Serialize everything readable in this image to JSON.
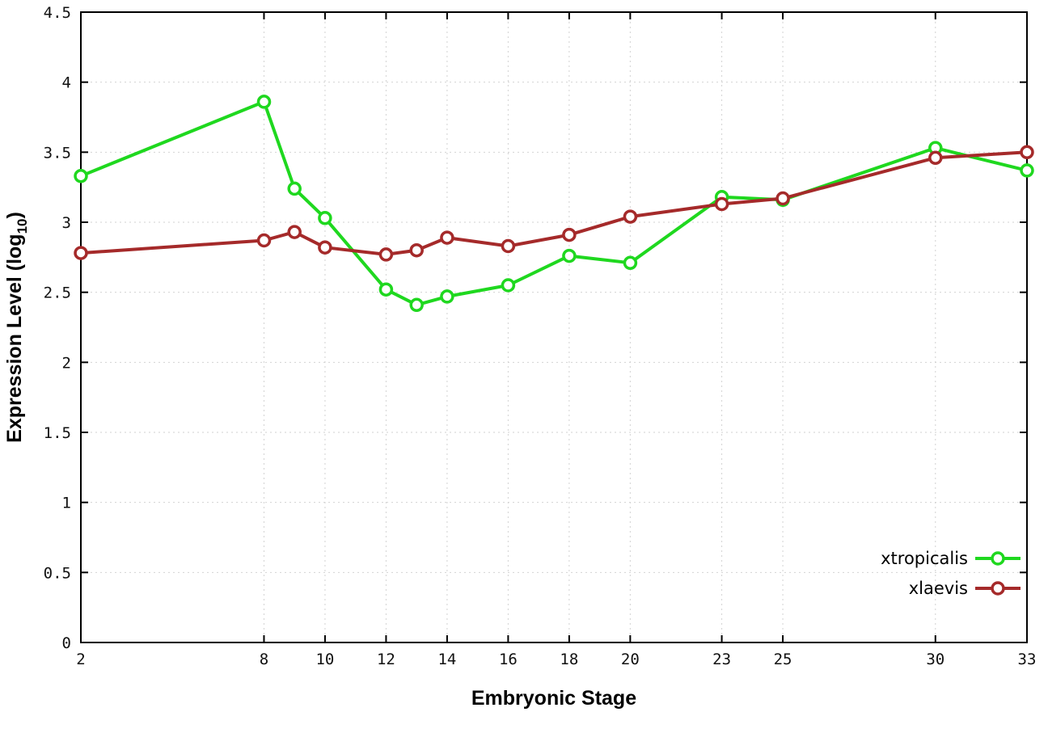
{
  "chart_data": {
    "type": "line",
    "title": "",
    "xlabel": "Embryonic Stage",
    "ylabel": "Expression Level (log10)",
    "ylabel_parts": {
      "pre": "Expression Level (log",
      "sub": "10",
      "post": ")"
    },
    "xlim": [
      2,
      33
    ],
    "ylim": [
      0,
      4.5
    ],
    "xticks": [
      2,
      8,
      10,
      12,
      14,
      16,
      18,
      20,
      23,
      25,
      30,
      33
    ],
    "yticks": [
      0,
      0.5,
      1,
      1.5,
      2,
      2.5,
      3,
      3.5,
      4,
      4.5
    ],
    "grid": true,
    "legend_position": "bottom-right",
    "marker": "open-circle",
    "x": [
      2,
      8,
      9,
      10,
      12,
      13,
      14,
      16,
      18,
      20,
      23,
      25,
      30,
      33
    ],
    "series": [
      {
        "name": "xtropicalis",
        "color": "#1fd81f",
        "values": [
          3.33,
          3.86,
          3.24,
          3.03,
          2.52,
          2.41,
          2.47,
          2.55,
          2.76,
          2.71,
          3.18,
          3.16,
          3.53,
          3.37
        ]
      },
      {
        "name": "xlaevis",
        "color": "#a52a2a",
        "values": [
          2.78,
          2.87,
          2.93,
          2.82,
          2.77,
          2.8,
          2.89,
          2.83,
          2.91,
          3.04,
          3.13,
          3.17,
          3.46,
          3.5
        ]
      }
    ]
  },
  "layout_colors": {
    "background": "#ffffff",
    "grid": "#d2d2d2",
    "axis": "#000000",
    "marker_fill": "#ffffff"
  }
}
